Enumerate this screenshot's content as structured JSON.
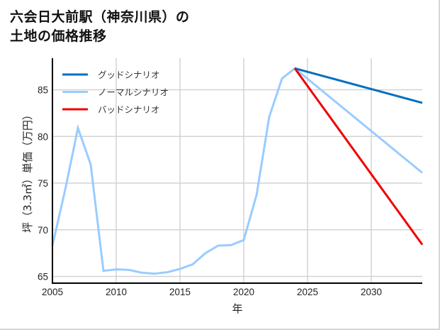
{
  "title_line1": "六会日大前駅（神奈川県）の",
  "title_line2": "土地の価格推移",
  "chart_data": {
    "type": "line",
    "title": "六会日大前駅（神奈川県）の土地の価格推移",
    "xlabel": "年",
    "ylabel": "坪（3.3㎡）単価（万円）",
    "xlim": [
      2005,
      2034
    ],
    "ylim": [
      64.3,
      88.5
    ],
    "x_ticks": [
      2005,
      2010,
      2015,
      2020,
      2025,
      2030
    ],
    "y_ticks": [
      65,
      70,
      75,
      80,
      85
    ],
    "grid": true,
    "legend_position": "upper left",
    "series": [
      {
        "name": "グッドシナリオ",
        "color": "#0070c0",
        "x": [
          2024,
          2034
        ],
        "values": [
          87.3,
          83.6
        ]
      },
      {
        "name": "ノーマルシナリオ",
        "color": "#99ccff",
        "x": [
          2005,
          2006,
          2007,
          2008,
          2009,
          2010,
          2011,
          2012,
          2013,
          2014,
          2015,
          2016,
          2017,
          2018,
          2019,
          2020,
          2021,
          2022,
          2023,
          2024,
          2034
        ],
        "values": [
          68.3,
          74.3,
          80.9,
          77.0,
          65.6,
          65.75,
          65.7,
          65.4,
          65.3,
          65.45,
          65.8,
          66.3,
          67.5,
          68.3,
          68.35,
          68.9,
          73.7,
          82.1,
          86.2,
          87.3,
          76.1
        ]
      },
      {
        "name": "バッドシナリオ",
        "color": "#ee0000",
        "x": [
          2024,
          2034
        ],
        "values": [
          87.3,
          68.4
        ]
      }
    ]
  }
}
